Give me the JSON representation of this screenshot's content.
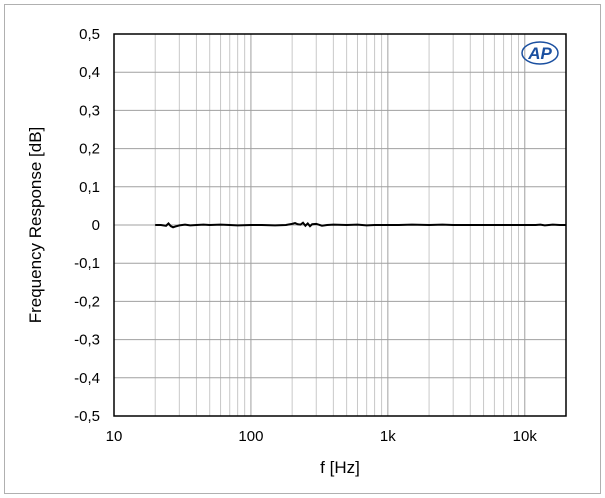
{
  "chart_data": {
    "type": "line",
    "title": "",
    "xlabel": "f [Hz]",
    "ylabel": "Frequency Response  [dB]",
    "xscale": "log",
    "xlim": [
      10,
      20000
    ],
    "ylim": [
      -0.5,
      0.5
    ],
    "grid": true,
    "x_tick_values": [
      10,
      100,
      1000,
      10000
    ],
    "x_tick_labels": [
      "10",
      "100",
      "1k",
      "10k"
    ],
    "y_tick_values": [
      0.5,
      0.4,
      0.3,
      0.2,
      0.1,
      0,
      -0.1,
      -0.2,
      -0.3,
      -0.4,
      -0.5
    ],
    "y_tick_labels": [
      "0,5",
      "0,4",
      "0,3",
      "0,2",
      "0,1",
      "0",
      "-0,1",
      "-0,2",
      "-0,3",
      "-0,4",
      "-0,5"
    ],
    "line_color": "#000000",
    "series": [
      {
        "x": [
          20,
          22,
          24,
          25,
          26,
          27,
          28,
          30,
          33,
          36,
          40,
          45,
          50,
          60,
          70,
          80,
          100,
          120,
          150,
          180,
          200,
          210,
          220,
          230,
          240,
          250,
          260,
          270,
          280,
          300,
          330,
          360,
          400,
          500,
          600,
          700,
          800,
          1000,
          1200,
          1500,
          2000,
          2500,
          3000,
          4000,
          5000,
          6000,
          7000,
          8000,
          10000,
          12000,
          13000,
          14000,
          15000,
          16000,
          18000,
          20000
        ],
        "y": [
          0,
          0,
          -0.002,
          0.004,
          -0.003,
          -0.006,
          -0.004,
          -0.001,
          0.001,
          -0.001,
          0,
          0.001,
          0,
          0.001,
          0,
          -0.001,
          0,
          0,
          -0.001,
          0,
          0.003,
          0.005,
          0.002,
          0.001,
          0.006,
          -0.002,
          0.004,
          -0.003,
          0.002,
          0.003,
          -0.002,
          0,
          0.001,
          0,
          0.001,
          -0.001,
          0,
          0,
          0,
          0.001,
          0,
          0.001,
          0,
          0,
          0,
          0,
          0,
          0,
          0,
          0,
          0.001,
          -0.001,
          0,
          0.001,
          0,
          0
        ]
      }
    ]
  },
  "logo": {
    "text": "AP",
    "color": "#1a4fa0"
  }
}
